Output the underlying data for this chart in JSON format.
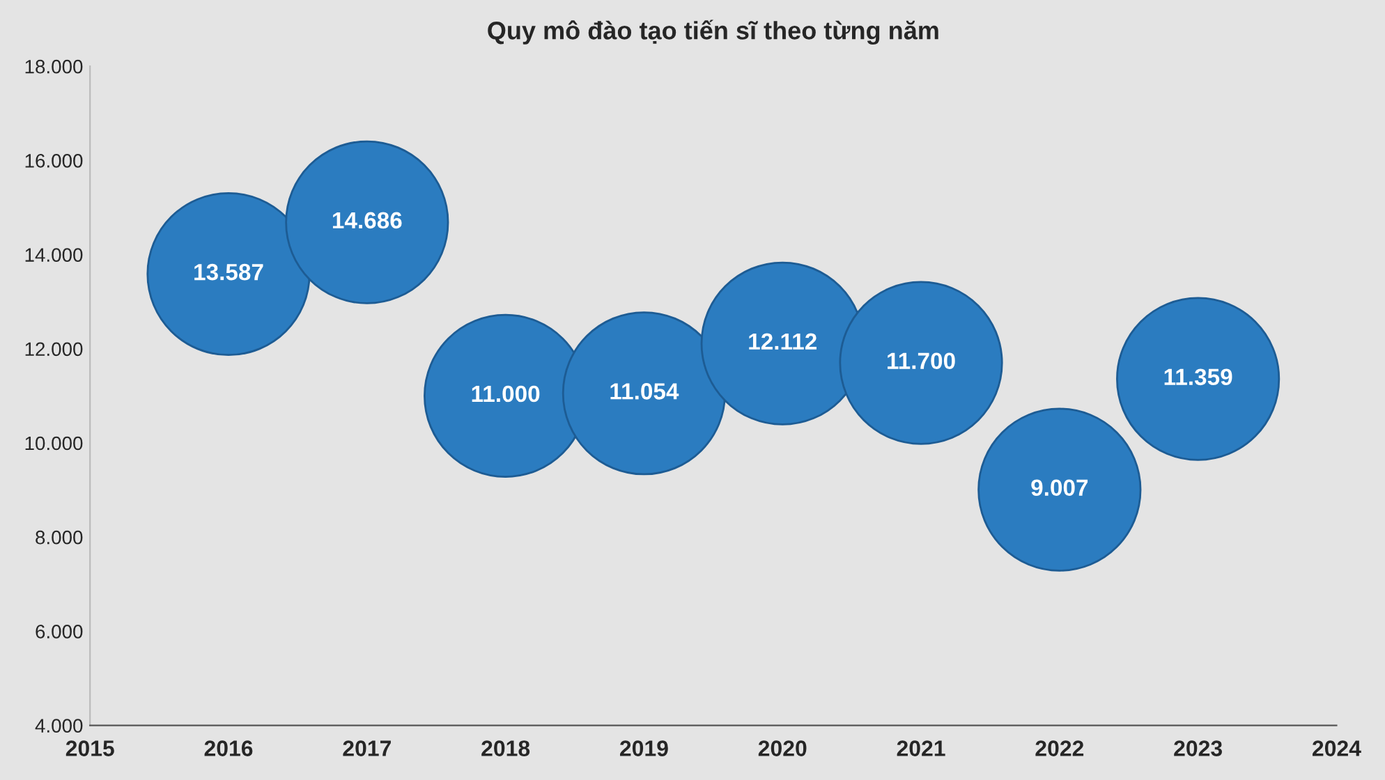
{
  "chart_data": {
    "type": "bubble",
    "title": "Quy mô đào tạo tiến sĩ theo từng năm",
    "x": [
      2016,
      2017,
      2018,
      2019,
      2020,
      2021,
      2022,
      2023
    ],
    "series": [
      {
        "color": "#2b7cc0",
        "values": [
          13587,
          14686,
          11000,
          11054,
          12112,
          11700,
          9007,
          11359
        ],
        "sizes": [
          1,
          1,
          1,
          1,
          1,
          1,
          1,
          1
        ],
        "value_labels": [
          "13.587",
          "14.686",
          "11.000",
          "11.054",
          "12.112",
          "11.700",
          "9.007",
          "11.359"
        ]
      }
    ],
    "xlim": [
      2015,
      2024
    ],
    "xticks": [
      2015,
      2016,
      2017,
      2018,
      2019,
      2020,
      2021,
      2022,
      2023,
      2024
    ],
    "ylim": [
      4000,
      18000
    ],
    "yticks": [
      {
        "value": 4000,
        "label": "4.000"
      },
      {
        "value": 6000,
        "label": "6.000"
      },
      {
        "value": 8000,
        "label": "8.000"
      },
      {
        "value": 10000,
        "label": "10.000"
      },
      {
        "value": 12000,
        "label": "12.000"
      },
      {
        "value": 14000,
        "label": "14.000"
      },
      {
        "value": 16000,
        "label": "16.000"
      },
      {
        "value": 18000,
        "label": "18.000"
      }
    ],
    "grid": false,
    "legend": false
  }
}
